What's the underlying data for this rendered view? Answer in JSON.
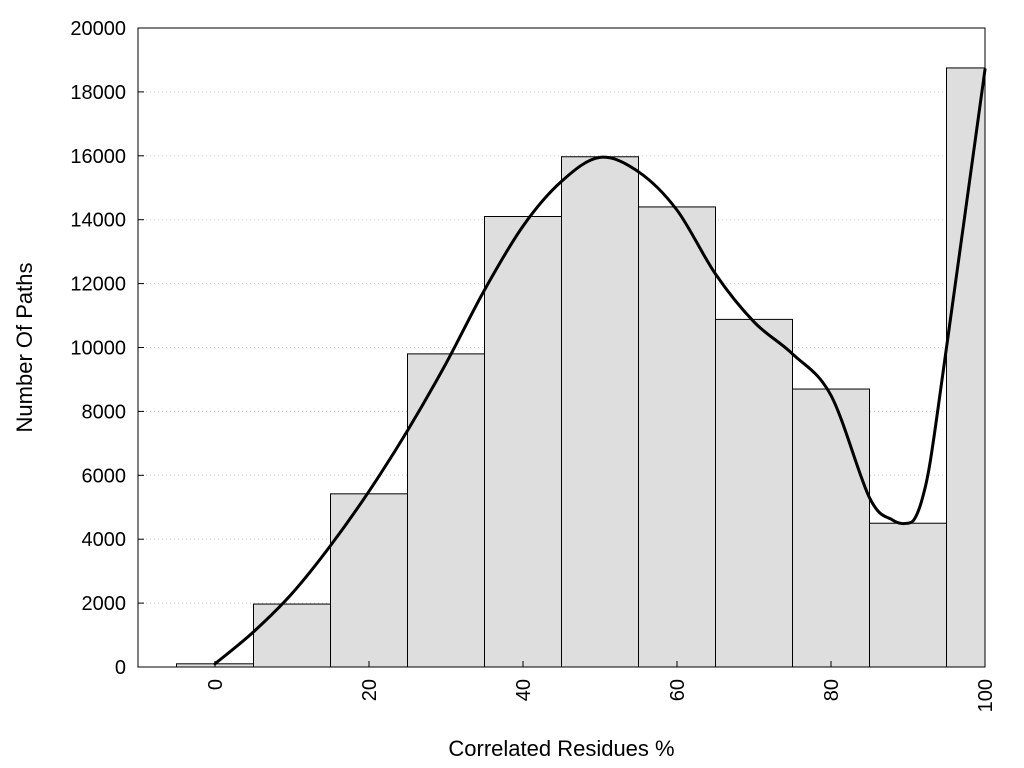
{
  "chart_data": {
    "type": "bar",
    "xlabel": "Correlated Residues %",
    "ylabel": "Number Of Paths",
    "xlim": [
      -10,
      100
    ],
    "ylim": [
      0,
      20000
    ],
    "x_ticks": [
      0,
      20,
      40,
      60,
      80,
      100
    ],
    "y_ticks": [
      0,
      2000,
      4000,
      6000,
      8000,
      10000,
      12000,
      14000,
      16000,
      18000,
      20000
    ],
    "grid": "horizontal dotted",
    "bars": [
      {
        "x_start": -5,
        "x_end": 5,
        "value": 100
      },
      {
        "x_start": 5,
        "x_end": 15,
        "value": 1970
      },
      {
        "x_start": 15,
        "x_end": 25,
        "value": 5420
      },
      {
        "x_start": 25,
        "x_end": 35,
        "value": 9800
      },
      {
        "x_start": 35,
        "x_end": 45,
        "value": 14100
      },
      {
        "x_start": 45,
        "x_end": 55,
        "value": 15970
      },
      {
        "x_start": 55,
        "x_end": 65,
        "value": 14400
      },
      {
        "x_start": 65,
        "x_end": 75,
        "value": 10880
      },
      {
        "x_start": 75,
        "x_end": 85,
        "value": 8700
      },
      {
        "x_start": 85,
        "x_end": 95,
        "value": 4500
      },
      {
        "x_start": 95,
        "x_end": 100,
        "value": 18750
      }
    ],
    "curve": {
      "x": [
        0,
        5,
        10,
        15,
        20,
        25,
        30,
        35,
        40,
        45,
        50,
        55,
        60,
        65,
        70,
        75,
        80,
        85,
        88,
        90,
        91,
        92,
        93,
        95,
        100
      ],
      "y": [
        100,
        1100,
        2300,
        3800,
        5500,
        7400,
        9500,
        11800,
        13800,
        15200,
        15950,
        15500,
        14300,
        12300,
        10800,
        9800,
        8500,
        5300,
        4600,
        4500,
        4700,
        5400,
        6600,
        10000,
        18700
      ]
    },
    "colors": {
      "bar_fill": "#dedede",
      "bar_stroke": "#000000",
      "curve": "#000000",
      "grid": "#c8c8c8"
    }
  }
}
